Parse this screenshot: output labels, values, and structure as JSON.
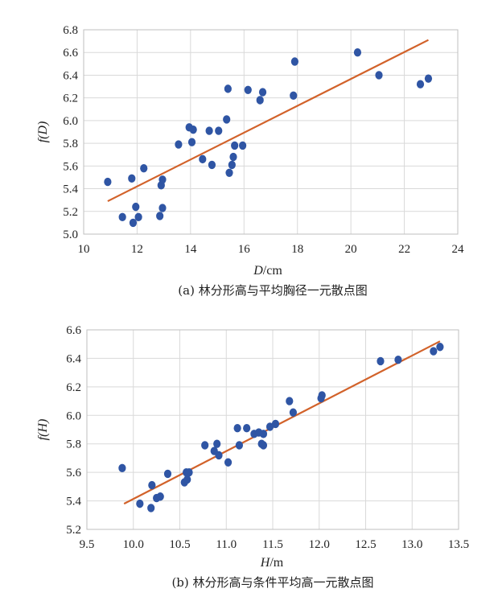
{
  "chart_data": [
    {
      "type": "scatter",
      "xlabel_main": "D",
      "xlabel_unit": "/cm",
      "ylabel": "f(D)",
      "caption": "(a) 林分形高与平均胸径一元散点图",
      "xlim": [
        10,
        24
      ],
      "ylim": [
        5.0,
        6.8
      ],
      "xticks": [
        "10",
        "12",
        "14",
        "16",
        "18",
        "20",
        "22",
        "24"
      ],
      "yticks": [
        "5.0",
        "5.2",
        "5.4",
        "5.6",
        "5.8",
        "6.0",
        "6.2",
        "6.4",
        "6.6",
        "6.8"
      ],
      "grid": "both",
      "series": [
        {
          "marker_color": "#2f55a4",
          "points": [
            [
              10.9,
              5.46
            ],
            [
              11.45,
              5.15
            ],
            [
              11.8,
              5.49
            ],
            [
              11.85,
              5.1
            ],
            [
              11.95,
              5.24
            ],
            [
              12.05,
              5.15
            ],
            [
              12.25,
              5.58
            ],
            [
              12.85,
              5.16
            ],
            [
              12.9,
              5.43
            ],
            [
              12.95,
              5.23
            ],
            [
              12.95,
              5.48
            ],
            [
              13.55,
              5.79
            ],
            [
              13.95,
              5.94
            ],
            [
              14.05,
              5.81
            ],
            [
              14.1,
              5.92
            ],
            [
              14.45,
              5.66
            ],
            [
              14.7,
              5.91
            ],
            [
              14.8,
              5.61
            ],
            [
              15.05,
              5.91
            ],
            [
              15.35,
              6.01
            ],
            [
              15.4,
              6.28
            ],
            [
              15.45,
              5.54
            ],
            [
              15.55,
              5.61
            ],
            [
              15.6,
              5.68
            ],
            [
              15.65,
              5.78
            ],
            [
              15.95,
              5.78
            ],
            [
              16.15,
              6.27
            ],
            [
              16.6,
              6.18
            ],
            [
              16.7,
              6.25
            ],
            [
              17.85,
              6.22
            ],
            [
              17.9,
              6.52
            ],
            [
              20.25,
              6.6
            ],
            [
              21.05,
              6.4
            ],
            [
              22.6,
              6.32
            ],
            [
              22.9,
              6.37
            ]
          ]
        }
      ],
      "fit_line": {
        "color": "#d2622a",
        "x": [
          10.9,
          22.9
        ],
        "y": [
          5.29,
          6.71
        ]
      }
    },
    {
      "type": "scatter",
      "xlabel_main": "H",
      "xlabel_unit": "/m",
      "ylabel": "f(H)",
      "caption": "(b) 林分形高与条件平均高一元散点图",
      "xlim": [
        9.5,
        13.5
      ],
      "ylim": [
        5.2,
        6.6
      ],
      "xticks": [
        "9.5",
        "10.0",
        "10.5",
        "11.0",
        "11.5",
        "12.0",
        "12.5",
        "13.0",
        "13.5"
      ],
      "yticks": [
        "5.2",
        "5.4",
        "5.6",
        "5.8",
        "6.0",
        "6.2",
        "6.4",
        "6.6"
      ],
      "grid": "both",
      "series": [
        {
          "marker_color": "#2f55a4",
          "points": [
            [
              9.88,
              5.63
            ],
            [
              10.07,
              5.38
            ],
            [
              10.19,
              5.35
            ],
            [
              10.2,
              5.51
            ],
            [
              10.25,
              5.42
            ],
            [
              10.29,
              5.43
            ],
            [
              10.37,
              5.59
            ],
            [
              10.55,
              5.53
            ],
            [
              10.57,
              5.6
            ],
            [
              10.58,
              5.55
            ],
            [
              10.6,
              5.6
            ],
            [
              10.77,
              5.79
            ],
            [
              10.87,
              5.75
            ],
            [
              10.9,
              5.8
            ],
            [
              10.92,
              5.72
            ],
            [
              11.02,
              5.67
            ],
            [
              11.12,
              5.91
            ],
            [
              11.14,
              5.79
            ],
            [
              11.22,
              5.91
            ],
            [
              11.3,
              5.87
            ],
            [
              11.35,
              5.88
            ],
            [
              11.38,
              5.8
            ],
            [
              11.4,
              5.79
            ],
            [
              11.4,
              5.87
            ],
            [
              11.47,
              5.92
            ],
            [
              11.53,
              5.94
            ],
            [
              11.68,
              6.1
            ],
            [
              11.72,
              6.02
            ],
            [
              12.02,
              6.12
            ],
            [
              12.03,
              6.14
            ],
            [
              12.66,
              6.38
            ],
            [
              12.85,
              6.39
            ],
            [
              13.23,
              6.45
            ],
            [
              13.3,
              6.48
            ]
          ]
        }
      ],
      "fit_line": {
        "color": "#d2622a",
        "x": [
          9.9,
          13.3
        ],
        "y": [
          5.38,
          6.52
        ]
      }
    }
  ]
}
